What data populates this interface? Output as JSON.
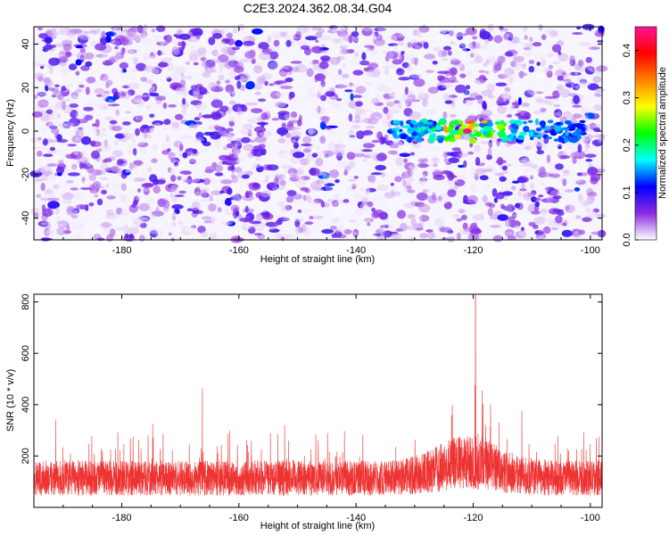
{
  "title": "C2E3.2024.362.08.34.G04",
  "chart_data": [
    {
      "type": "heatmap",
      "xlabel": "Height of straight line (km)",
      "ylabel": "Frequency (Hz)",
      "xlim": [
        -195,
        -98
      ],
      "ylim": [
        -50,
        48
      ],
      "xticks": [
        -180,
        -160,
        -140,
        -120,
        -100
      ],
      "yticks": [
        -40,
        -20,
        0,
        20,
        40
      ],
      "colorbar": {
        "label": "Normalized spectral amplitude",
        "range": [
          0,
          0.45
        ],
        "ticks": [
          "0.0",
          "0.1",
          "0.2",
          "0.3",
          "0.4"
        ],
        "colors": [
          "#ffffff",
          "#8a2be2",
          "#0000ff",
          "#00ffff",
          "#00ff00",
          "#ffff00",
          "#ff8000",
          "#ff0000",
          "#ff1493"
        ]
      },
      "features": {
        "background_level": 0.06,
        "signal_band": {
          "x_range": [
            -134,
            -101
          ],
          "frequency": 0,
          "peak_amplitude": 0.44,
          "peak_x": -121
        }
      }
    },
    {
      "type": "line",
      "xlabel": "Height of straight line (km)",
      "ylabel": "SNR (10 * v/v)",
      "xlim": [
        -195,
        -98
      ],
      "ylim": [
        0,
        830
      ],
      "xticks": [
        -180,
        -160,
        -140,
        -120,
        -100
      ],
      "yticks": [
        200,
        400,
        600,
        800
      ],
      "series": [
        {
          "color": "#ee3333",
          "baseline": 130,
          "peak_x": -119.6,
          "peak_value": 830
        }
      ]
    }
  ]
}
